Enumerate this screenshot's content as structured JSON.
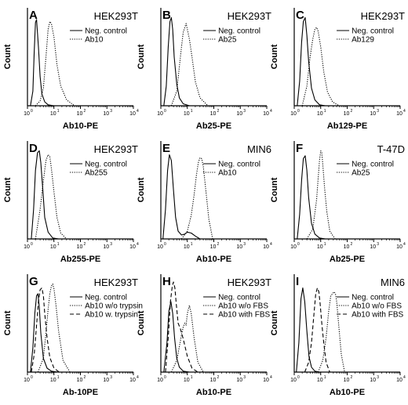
{
  "chart_data": [
    {
      "panel": "A",
      "type": "line",
      "cell_line": "HEK293T",
      "xlabel": "Ab10-PE",
      "ylabel": "Count",
      "x_scale": "log",
      "xlim": [
        1,
        10000
      ],
      "ticks": [
        "10",
        "10",
        "10",
        "10",
        "10"
      ],
      "tick_exp": [
        "0",
        "1",
        "2",
        "3",
        "4"
      ],
      "legend_position": "top-right",
      "series": [
        {
          "name": "Neg. control",
          "style": "solid",
          "x": [
            1.3,
            1.6,
            1.8,
            2.0,
            2.2,
            2.6,
            3.0,
            3.5,
            4.5,
            6,
            10,
            20
          ],
          "y": [
            0,
            15,
            55,
            85,
            88,
            60,
            30,
            12,
            4,
            1,
            0,
            0
          ]
        },
        {
          "name": "Ab10",
          "style": "dotted",
          "x": [
            2,
            3,
            4,
            5,
            6,
            7,
            8,
            10,
            13,
            18,
            30,
            60
          ],
          "y": [
            0,
            5,
            18,
            50,
            78,
            86,
            84,
            70,
            42,
            20,
            6,
            0
          ]
        }
      ]
    },
    {
      "panel": "B",
      "type": "line",
      "cell_line": "HEK293T",
      "xlabel": "Ab25-PE",
      "ylabel": "Count",
      "x_scale": "log",
      "xlim": [
        1,
        10000
      ],
      "ticks": [
        "10",
        "10",
        "10",
        "10",
        "10"
      ],
      "tick_exp": [
        "0",
        "1",
        "2",
        "3",
        "4"
      ],
      "legend_position": "top-right",
      "series": [
        {
          "name": "Neg. control",
          "style": "solid",
          "x": [
            1.3,
            1.6,
            1.9,
            2.2,
            2.5,
            2.8,
            3.2,
            4,
            5,
            7,
            12,
            20
          ],
          "y": [
            0,
            20,
            60,
            86,
            90,
            78,
            50,
            22,
            8,
            2,
            0,
            0
          ]
        },
        {
          "name": "Ab25",
          "style": "dotted",
          "x": [
            2.5,
            4,
            5,
            6,
            7,
            8,
            9,
            10,
            12,
            15,
            20,
            30,
            60
          ],
          "y": [
            0,
            15,
            40,
            60,
            75,
            80,
            84,
            78,
            68,
            50,
            25,
            8,
            0
          ]
        }
      ]
    },
    {
      "panel": "C",
      "type": "line",
      "cell_line": "HEK293T",
      "xlabel": "Ab129-PE",
      "ylabel": "Count",
      "x_scale": "log",
      "xlim": [
        1,
        10000
      ],
      "ticks": [
        "10",
        "10",
        "10",
        "10",
        "10"
      ],
      "tick_exp": [
        "0",
        "1",
        "2",
        "3",
        "4"
      ],
      "legend_position": "top-right",
      "series": [
        {
          "name": "Neg. control",
          "style": "solid",
          "x": [
            1.3,
            1.6,
            1.9,
            2.2,
            2.6,
            3,
            3.5,
            4.5,
            6,
            9,
            15
          ],
          "y": [
            0,
            25,
            65,
            86,
            90,
            72,
            45,
            18,
            6,
            1,
            0
          ]
        },
        {
          "name": "Ab129",
          "style": "dotted",
          "x": [
            2,
            3,
            4,
            5,
            6,
            7,
            8,
            10,
            13,
            18,
            28,
            50
          ],
          "y": [
            0,
            20,
            50,
            68,
            78,
            80,
            76,
            60,
            35,
            14,
            4,
            0
          ]
        }
      ]
    },
    {
      "panel": "D",
      "type": "line",
      "cell_line": "HEK293T",
      "xlabel": "Ab255-PE",
      "ylabel": "Count",
      "x_scale": "log",
      "xlim": [
        1,
        10000
      ],
      "ticks": [
        "10",
        "10",
        "10",
        "10",
        "10"
      ],
      "tick_exp": [
        "0",
        "1",
        "2",
        "3",
        "4"
      ],
      "legend_position": "top-right",
      "series": [
        {
          "name": "Neg. control",
          "style": "solid",
          "x": [
            1.4,
            1.7,
            2,
            2.4,
            2.8,
            3.2,
            3.8,
            4.5,
            6,
            9,
            15
          ],
          "y": [
            0,
            30,
            70,
            88,
            90,
            78,
            50,
            22,
            7,
            1,
            0
          ]
        },
        {
          "name": "Ab255",
          "style": "dotted",
          "x": [
            2,
            3,
            4,
            5,
            6,
            7,
            8,
            10,
            13,
            18,
            30
          ],
          "y": [
            0,
            30,
            60,
            80,
            86,
            84,
            72,
            48,
            22,
            6,
            0
          ]
        }
      ]
    },
    {
      "panel": "E",
      "type": "line",
      "cell_line": "MIN6",
      "xlabel": "Ab10-PE",
      "ylabel": "Count",
      "x_scale": "log",
      "xlim": [
        1,
        10000
      ],
      "ticks": [
        "10",
        "10",
        "10",
        "10",
        "10"
      ],
      "tick_exp": [
        "0",
        "1",
        "2",
        "3",
        "4"
      ],
      "legend_position": "top-right",
      "series": [
        {
          "name": "Neg. control",
          "style": "solid",
          "x": [
            1.2,
            1.5,
            1.8,
            2.1,
            2.5,
            3,
            3.6,
            4.5,
            6,
            8,
            10,
            14,
            20,
            30
          ],
          "y": [
            0,
            30,
            70,
            86,
            80,
            50,
            22,
            8,
            4,
            5,
            7,
            6,
            3,
            0
          ]
        },
        {
          "name": "Ab10",
          "style": "dotted",
          "x": [
            6,
            10,
            14,
            18,
            22,
            26,
            30,
            35,
            40,
            50,
            65,
            90
          ],
          "y": [
            0,
            8,
            24,
            45,
            65,
            78,
            83,
            82,
            74,
            50,
            20,
            0
          ]
        }
      ]
    },
    {
      "panel": "F",
      "type": "line",
      "cell_line": "T-47D",
      "xlabel": "Ab25-PE",
      "ylabel": "Count",
      "x_scale": "log",
      "xlim": [
        1,
        10000
      ],
      "ticks": [
        "10",
        "10",
        "10",
        "10",
        "10"
      ],
      "tick_exp": [
        "0",
        "1",
        "2",
        "3",
        "4"
      ],
      "legend_position": "top-right",
      "series": [
        {
          "name": "Neg. control",
          "style": "solid",
          "x": [
            1.3,
            1.6,
            1.9,
            2.2,
            2.6,
            3,
            3.5,
            4.5,
            6,
            9,
            15
          ],
          "y": [
            0,
            25,
            60,
            82,
            85,
            70,
            42,
            16,
            5,
            1,
            0
          ]
        },
        {
          "name": "Ab25",
          "style": "dotted",
          "x": [
            3,
            5,
            7,
            8,
            9,
            10,
            11,
            12,
            14,
            17,
            22,
            35
          ],
          "y": [
            0,
            10,
            40,
            62,
            80,
            90,
            88,
            76,
            52,
            28,
            8,
            0
          ]
        }
      ]
    },
    {
      "panel": "G",
      "type": "line",
      "cell_line": "HEK293T",
      "xlabel": "Ab-10PE",
      "ylabel": "Count",
      "x_scale": "log",
      "xlim": [
        1,
        10000
      ],
      "ticks": [
        "10",
        "10",
        "10",
        "10",
        "10"
      ],
      "tick_exp": [
        "0",
        "1",
        "2",
        "3",
        "4"
      ],
      "legend_position": "top-right",
      "series": [
        {
          "name": "Neg. control",
          "style": "solid",
          "x": [
            1.3,
            1.6,
            1.9,
            2.2,
            2.5,
            2.8,
            3.2,
            4,
            5.5,
            8,
            14
          ],
          "y": [
            0,
            25,
            60,
            78,
            80,
            66,
            40,
            14,
            4,
            1,
            0
          ]
        },
        {
          "name": "Ab10 w/o trypsin",
          "style": "dotted",
          "x": [
            2.5,
            4,
            5,
            6,
            7,
            8,
            9,
            10,
            12,
            15,
            22,
            40
          ],
          "y": [
            0,
            14,
            40,
            64,
            80,
            88,
            90,
            85,
            68,
            42,
            12,
            0
          ]
        },
        {
          "name": "Ab10 w. trypsin",
          "style": "dashed",
          "x": [
            1.4,
            1.8,
            2.2,
            2.6,
            3,
            3.5,
            4,
            4.5,
            5.5,
            7,
            10,
            16
          ],
          "y": [
            0,
            18,
            48,
            72,
            84,
            86,
            78,
            60,
            35,
            15,
            4,
            0
          ]
        }
      ]
    },
    {
      "panel": "H",
      "type": "line",
      "cell_line": "HEK293T",
      "xlabel": "Ab10-PE",
      "ylabel": "Count",
      "x_scale": "log",
      "xlim": [
        1,
        10000
      ],
      "ticks": [
        "10",
        "10",
        "10",
        "10",
        "10"
      ],
      "tick_exp": [
        "0",
        "1",
        "2",
        "3",
        "4"
      ],
      "legend_position": "top-right",
      "series": [
        {
          "name": "Neg. control",
          "style": "solid",
          "x": [
            1.3,
            1.7,
            2,
            2.4,
            2.8,
            3.3,
            4,
            5,
            7,
            12
          ],
          "y": [
            0,
            30,
            62,
            72,
            60,
            35,
            14,
            5,
            1,
            0
          ]
        },
        {
          "name": "Ab10 w/o FBS",
          "style": "dotted",
          "x": [
            2.5,
            4,
            5,
            6,
            7,
            8,
            9,
            10,
            12,
            14,
            18,
            25,
            40
          ],
          "y": [
            0,
            12,
            26,
            38,
            46,
            50,
            48,
            60,
            68,
            60,
            35,
            10,
            0
          ]
        },
        {
          "name": "Ab10 with FBS",
          "style": "dashed",
          "x": [
            1.5,
            1.9,
            2.3,
            2.7,
            3,
            3.4,
            3.8,
            4.5,
            5.5,
            7,
            10,
            15,
            25
          ],
          "y": [
            0,
            35,
            72,
            88,
            92,
            86,
            70,
            50,
            44,
            34,
            16,
            4,
            0
          ]
        }
      ]
    },
    {
      "panel": "I",
      "type": "line",
      "cell_line": "MIN6",
      "xlabel": "Ab10-PE",
      "ylabel": "Count",
      "x_scale": "log",
      "xlim": [
        1,
        10000
      ],
      "ticks": [
        "10",
        "10",
        "10",
        "10",
        "10"
      ],
      "tick_exp": [
        "0",
        "1",
        "2",
        "3",
        "4"
      ],
      "legend_position": "top-right",
      "series": [
        {
          "name": "Neg. control",
          "style": "solid",
          "x": [
            1.2,
            1.5,
            1.8,
            2.1,
            2.5,
            3,
            3.6,
            4.5,
            6,
            9,
            15
          ],
          "y": [
            0,
            30,
            75,
            86,
            72,
            42,
            16,
            5,
            1,
            0,
            0
          ]
        },
        {
          "name": "Ab10 w/o FBS",
          "style": "dotted",
          "x": [
            8,
            12,
            16,
            20,
            24,
            28,
            32,
            36,
            40,
            48,
            60,
            80
          ],
          "y": [
            0,
            12,
            35,
            62,
            78,
            80,
            82,
            80,
            72,
            48,
            18,
            0
          ]
        },
        {
          "name": "Ab10 with FBS",
          "style": "dashed",
          "x": [
            2.5,
            3.5,
            4.5,
            5.5,
            6.5,
            7.5,
            8.5,
            9.5,
            11,
            13,
            16,
            22
          ],
          "y": [
            0,
            10,
            30,
            58,
            80,
            86,
            82,
            70,
            50,
            30,
            10,
            0
          ]
        }
      ]
    }
  ]
}
